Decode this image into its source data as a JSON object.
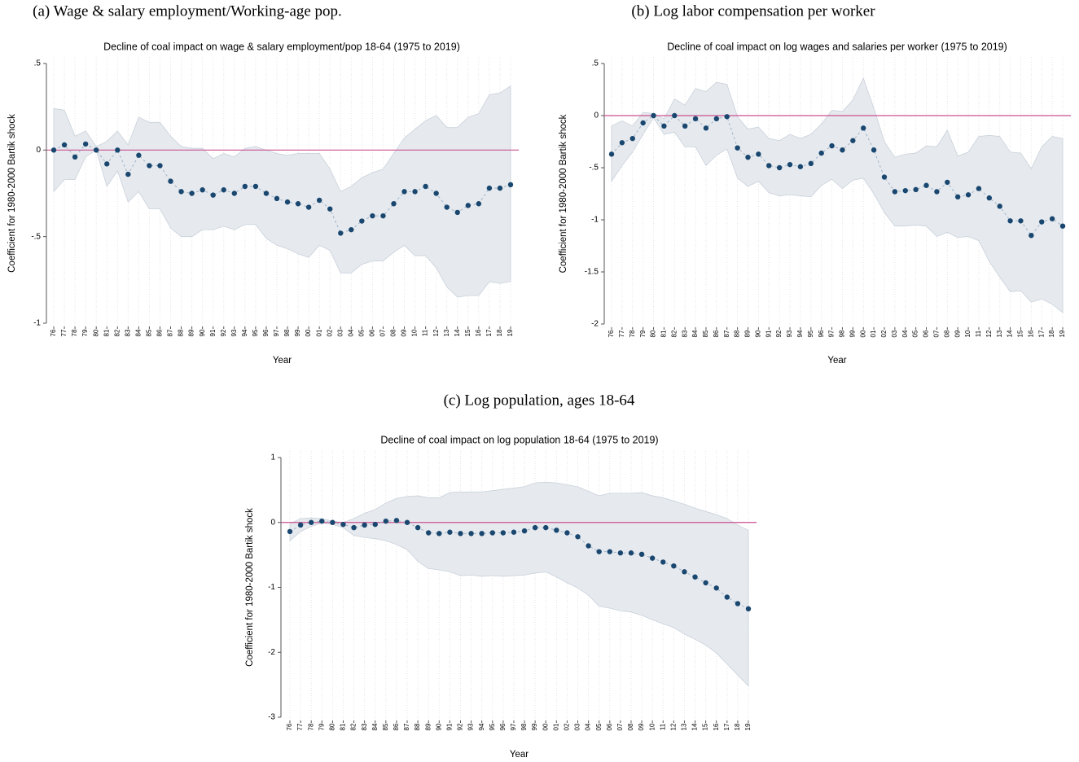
{
  "chart_data": [
    {
      "type": "line",
      "caption": "(a) Wage & salary employment/Working-age pop.",
      "title": "Decline of coal impact on wage & salary employment/pop 18-64 (1975 to 2019)",
      "xlabel": "Year",
      "ylabel": "Coefficient for 1980-2000  Bartik shock",
      "categories": [
        "76",
        "77",
        "78",
        "79",
        "80",
        "81",
        "82",
        "83",
        "84",
        "85",
        "86",
        "87",
        "88",
        "89",
        "90",
        "91",
        "92",
        "93",
        "94",
        "95",
        "96",
        "97",
        "98",
        "99",
        "00",
        "01",
        "02",
        "03",
        "04",
        "05",
        "06",
        "07",
        "08",
        "09",
        "10",
        "11",
        "12",
        "13",
        "14",
        "15",
        "16",
        "17",
        "18",
        "19"
      ],
      "values": [
        0,
        0.03,
        -0.04,
        0.035,
        0,
        -0.08,
        0,
        -0.14,
        -0.03,
        -0.09,
        -0.09,
        -0.18,
        -0.24,
        -0.25,
        -0.23,
        -0.26,
        -0.23,
        -0.25,
        -0.21,
        -0.21,
        -0.25,
        -0.28,
        -0.3,
        -0.31,
        -0.33,
        -0.29,
        -0.34,
        -0.48,
        -0.46,
        -0.41,
        -0.38,
        -0.38,
        -0.31,
        -0.24,
        -0.24,
        -0.21,
        -0.25,
        -0.33,
        -0.36,
        -0.32,
        -0.31,
        -0.22,
        -0.22,
        -0.2
      ],
      "ci_upper": [
        0.24,
        0.23,
        0.08,
        0.11,
        0.02,
        0.05,
        0.11,
        0.03,
        0.19,
        0.16,
        0.16,
        0.08,
        0.02,
        0.01,
        0.01,
        -0.05,
        -0.02,
        -0.04,
        0.01,
        0.02,
        0,
        -0.02,
        -0.03,
        -0.02,
        -0.02,
        -0.02,
        -0.11,
        -0.24,
        -0.21,
        -0.16,
        -0.13,
        -0.11,
        -0.02,
        0.07,
        0.12,
        0.17,
        0.2,
        0.13,
        0.13,
        0.19,
        0.21,
        0.32,
        0.33,
        0.37
      ],
      "ci_lower": [
        -0.24,
        -0.17,
        -0.17,
        -0.04,
        0,
        -0.21,
        -0.12,
        -0.3,
        -0.24,
        -0.34,
        -0.34,
        -0.45,
        -0.5,
        -0.5,
        -0.46,
        -0.46,
        -0.44,
        -0.46,
        -0.43,
        -0.43,
        -0.51,
        -0.55,
        -0.57,
        -0.6,
        -0.62,
        -0.55,
        -0.58,
        -0.71,
        -0.71,
        -0.66,
        -0.64,
        -0.64,
        -0.59,
        -0.55,
        -0.61,
        -0.61,
        -0.68,
        -0.79,
        -0.85,
        -0.84,
        -0.84,
        -0.76,
        -0.77,
        -0.76
      ],
      "ylim": [
        -1,
        0.5
      ],
      "yticks": [
        {
          "value": 0.5,
          "label": ".5"
        },
        0,
        {
          "value": -0.5,
          "label": "-.5"
        },
        -1
      ],
      "refline": 0,
      "refline_color": "#c9508f",
      "color": "#1a476f",
      "band_color": "#e6eaef",
      "grid": true
    },
    {
      "type": "line",
      "caption": "(b) Log labor compensation per worker",
      "title": "Decline of coal impact on log wages and salaries per worker (1975 to 2019)",
      "xlabel": "Year",
      "ylabel": "Coefficient for 1980-2000  Bartik shock",
      "categories": [
        "76",
        "77",
        "78",
        "79",
        "80",
        "81",
        "82",
        "83",
        "84",
        "85",
        "86",
        "87",
        "88",
        "89",
        "90",
        "91",
        "92",
        "93",
        "94",
        "95",
        "96",
        "97",
        "98",
        "99",
        "00",
        "01",
        "02",
        "03",
        "04",
        "05",
        "06",
        "07",
        "08",
        "09",
        "10",
        "11",
        "12",
        "13",
        "14",
        "15",
        "16",
        "17",
        "18",
        "19"
      ],
      "values": [
        -0.37,
        -0.26,
        -0.22,
        -0.07,
        0,
        -0.1,
        0,
        -0.1,
        -0.03,
        -0.12,
        -0.03,
        -0.01,
        -0.31,
        -0.4,
        -0.37,
        -0.48,
        -0.5,
        -0.47,
        -0.49,
        -0.46,
        -0.36,
        -0.29,
        -0.33,
        -0.24,
        -0.12,
        -0.33,
        -0.59,
        -0.73,
        -0.72,
        -0.71,
        -0.67,
        -0.73,
        -0.64,
        -0.78,
        -0.76,
        -0.7,
        -0.79,
        -0.87,
        -1.01,
        -1.01,
        -1.15,
        -1.02,
        -0.99,
        -1.06
      ],
      "ci_upper": [
        -0.1,
        -0.05,
        -0.1,
        0.03,
        0.02,
        -0.03,
        0.16,
        0.1,
        0.26,
        0.23,
        0.32,
        0.3,
        -0.01,
        -0.13,
        -0.11,
        -0.22,
        -0.24,
        -0.18,
        -0.22,
        -0.18,
        -0.08,
        0.05,
        0.04,
        0.15,
        0.36,
        0.07,
        -0.25,
        -0.4,
        -0.37,
        -0.36,
        -0.29,
        -0.3,
        -0.14,
        -0.39,
        -0.35,
        -0.2,
        -0.19,
        -0.2,
        -0.35,
        -0.36,
        -0.51,
        -0.3,
        -0.2,
        -0.22
      ],
      "ci_lower": [
        -0.63,
        -0.48,
        -0.35,
        -0.18,
        -0.02,
        -0.18,
        -0.16,
        -0.3,
        -0.3,
        -0.48,
        -0.38,
        -0.32,
        -0.6,
        -0.68,
        -0.63,
        -0.74,
        -0.77,
        -0.76,
        -0.77,
        -0.78,
        -0.67,
        -0.61,
        -0.7,
        -0.62,
        -0.6,
        -0.75,
        -0.93,
        -1.06,
        -1.06,
        -1.05,
        -1.06,
        -1.16,
        -1.12,
        -1.17,
        -1.16,
        -1.2,
        -1.4,
        -1.55,
        -1.69,
        -1.68,
        -1.79,
        -1.76,
        -1.81,
        -1.89
      ],
      "ylim": [
        -2,
        0.5
      ],
      "yticks": [
        {
          "value": 0.5,
          "label": ".5"
        },
        0,
        {
          "value": -0.5,
          "label": "-.5"
        },
        -1,
        -1.5,
        -2
      ],
      "refline": 0,
      "refline_color": "#c9508f",
      "color": "#1a476f",
      "band_color": "#e6eaef",
      "grid": true
    },
    {
      "type": "line",
      "caption": "(c) Log population, ages 18-64",
      "title": "Decline of coal impact on log population 18-64 (1975 to 2019)",
      "xlabel": "Year",
      "ylabel": "Coefficient for 1980-2000  Bartik shock",
      "categories": [
        "76",
        "77",
        "78",
        "79",
        "80",
        "81",
        "82",
        "83",
        "84",
        "85",
        "86",
        "87",
        "88",
        "89",
        "90",
        "91",
        "92",
        "93",
        "94",
        "95",
        "96",
        "97",
        "98",
        "99",
        "00",
        "01",
        "02",
        "03",
        "04",
        "05",
        "06",
        "07",
        "08",
        "09",
        "10",
        "11",
        "12",
        "13",
        "14",
        "15",
        "16",
        "17",
        "18",
        "19"
      ],
      "values": [
        -0.14,
        -0.04,
        0,
        0.02,
        0,
        -0.03,
        -0.08,
        -0.04,
        -0.03,
        0.02,
        0.03,
        0,
        -0.08,
        -0.16,
        -0.17,
        -0.15,
        -0.17,
        -0.17,
        -0.17,
        -0.16,
        -0.16,
        -0.15,
        -0.13,
        -0.08,
        -0.08,
        -0.12,
        -0.16,
        -0.22,
        -0.36,
        -0.45,
        -0.45,
        -0.47,
        -0.47,
        -0.49,
        -0.55,
        -0.61,
        -0.67,
        -0.76,
        -0.84,
        -0.93,
        -1.01,
        -1.15,
        -1.25,
        -1.33
      ],
      "ci_upper": [
        -0.02,
        0.06,
        0.07,
        0.06,
        0.02,
        0,
        0.06,
        0.14,
        0.2,
        0.3,
        0.37,
        0.4,
        0.41,
        0.38,
        0.38,
        0.46,
        0.47,
        0.47,
        0.47,
        0.49,
        0.51,
        0.53,
        0.55,
        0.61,
        0.62,
        0.61,
        0.58,
        0.55,
        0.48,
        0.41,
        0.45,
        0.45,
        0.45,
        0.46,
        0.41,
        0.38,
        0.33,
        0.28,
        0.22,
        0.17,
        0.12,
        0.06,
        -0.04,
        -0.12
      ],
      "ci_lower": [
        -0.28,
        -0.14,
        -0.06,
        -0.01,
        -0.03,
        -0.08,
        -0.2,
        -0.23,
        -0.25,
        -0.28,
        -0.34,
        -0.42,
        -0.6,
        -0.71,
        -0.73,
        -0.76,
        -0.82,
        -0.81,
        -0.83,
        -0.82,
        -0.83,
        -0.82,
        -0.81,
        -0.78,
        -0.76,
        -0.84,
        -0.93,
        -1.01,
        -1.12,
        -1.29,
        -1.32,
        -1.36,
        -1.38,
        -1.43,
        -1.5,
        -1.56,
        -1.62,
        -1.72,
        -1.8,
        -1.89,
        -2.01,
        -2.18,
        -2.35,
        -2.52
      ],
      "ylim": [
        -3,
        1
      ],
      "yticks": [
        1,
        0,
        -1,
        -2,
        -3
      ],
      "refline": 0,
      "refline_color": "#c9508f",
      "color": "#1a476f",
      "band_color": "#e6eaef",
      "grid": true
    }
  ]
}
